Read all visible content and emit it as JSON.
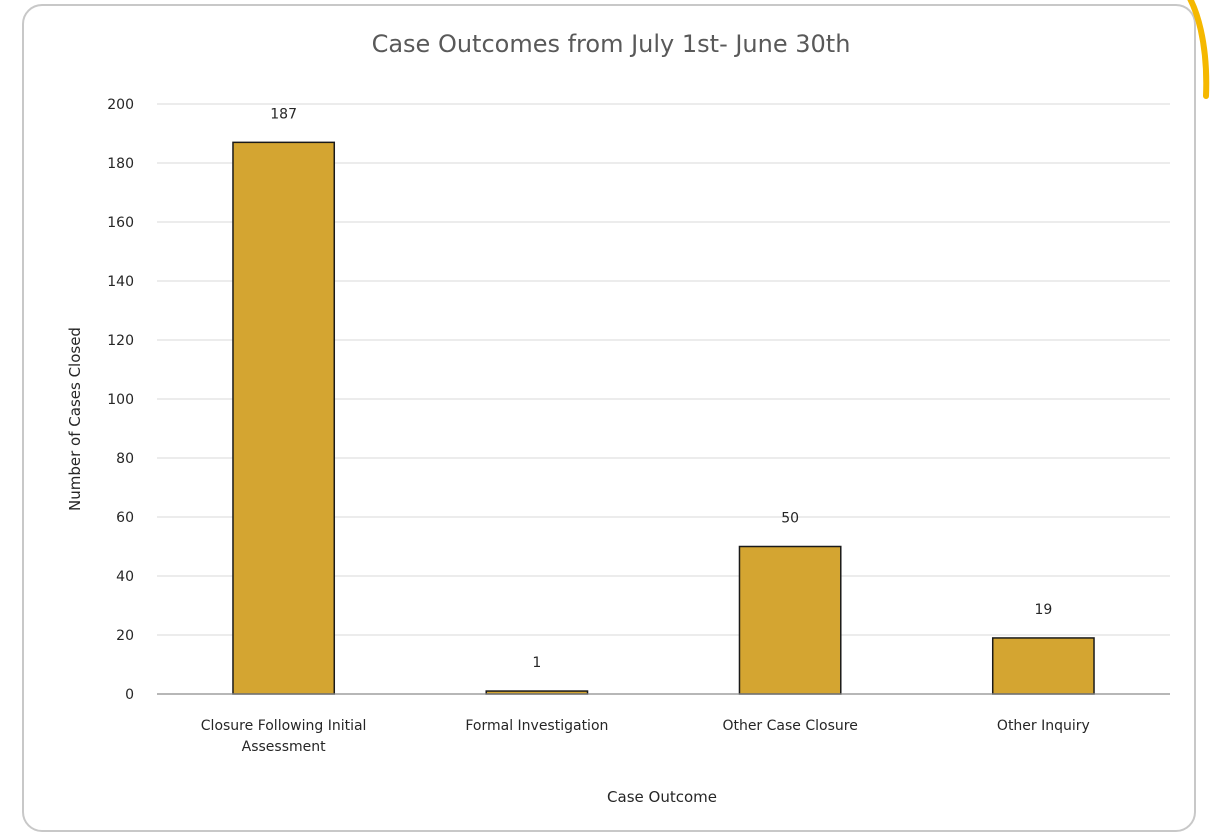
{
  "chart_data": {
    "type": "bar",
    "title": "Case Outcomes from July 1st- June 30th",
    "xlabel": "Case Outcome",
    "ylabel": "Number of Cases Closed",
    "categories": [
      [
        "Closure Following Initial",
        "Assessment"
      ],
      [
        "Formal Investigation"
      ],
      [
        "Other Case Closure"
      ],
      [
        "Other Inquiry"
      ]
    ],
    "values": [
      187,
      1,
      50,
      19
    ],
    "data_labels": [
      "187",
      "1",
      "50",
      "19"
    ],
    "ylim": [
      0,
      200
    ],
    "yticks": [
      0,
      20,
      40,
      60,
      80,
      100,
      120,
      140,
      160,
      180,
      200
    ],
    "grid": true,
    "legend": "none"
  },
  "colors": {
    "bar_fill": "#D4A531",
    "bar_stroke": "#1a1a1a",
    "grid": "#d9d9d9",
    "axis": "#8c8c8c",
    "title": "#595959",
    "text": "#262626",
    "frame_border": "#c8c8c8",
    "accent": "#F5B800"
  }
}
